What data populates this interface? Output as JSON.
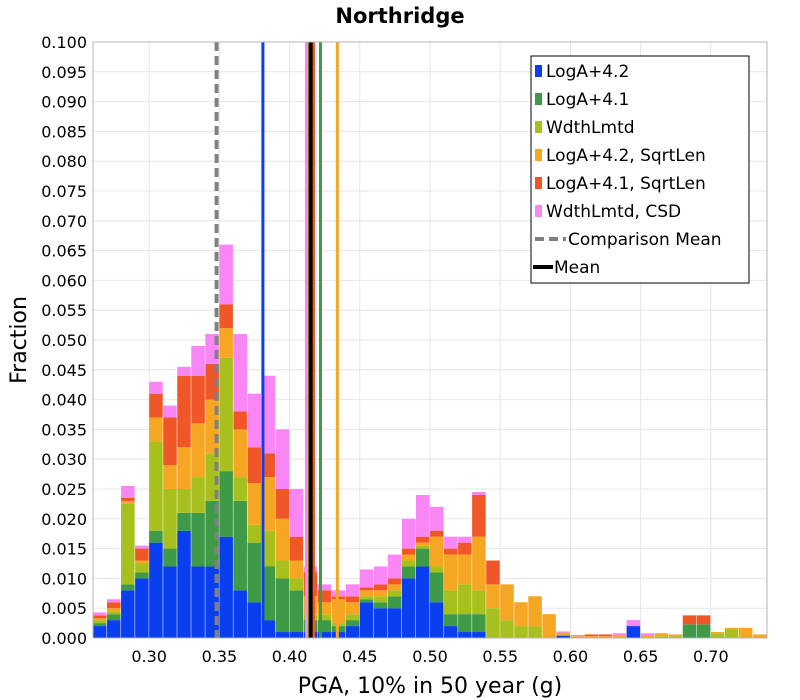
{
  "chart_data": {
    "type": "bar",
    "title": "Northridge",
    "xlabel": "PGA, 10% in 50 year (g)",
    "ylabel": "Fraction",
    "xlim": [
      0.26,
      0.74
    ],
    "ylim": [
      0,
      0.1
    ],
    "bin_width": 0.01,
    "x_ticks": [
      "0.30",
      "0.35",
      "0.40",
      "0.45",
      "0.50",
      "0.55",
      "0.60",
      "0.65",
      "0.70"
    ],
    "y_ticks": [
      "0.000",
      "0.005",
      "0.010",
      "0.015",
      "0.020",
      "0.025",
      "0.030",
      "0.035",
      "0.040",
      "0.045",
      "0.050",
      "0.055",
      "0.060",
      "0.065",
      "0.070",
      "0.075",
      "0.080",
      "0.085",
      "0.090",
      "0.095",
      "0.100"
    ],
    "grid": true,
    "legend_position": "top-right",
    "stacked": true,
    "series": [
      {
        "name": "LogA+4.2",
        "color": "#0a3ff0",
        "mean": 0.381,
        "x": [
          0.265,
          0.275,
          0.285,
          0.295,
          0.305,
          0.315,
          0.325,
          0.335,
          0.345,
          0.355,
          0.365,
          0.375,
          0.385,
          0.395,
          0.405,
          0.415,
          0.425,
          0.435,
          0.445,
          0.455,
          0.465,
          0.475,
          0.485,
          0.495,
          0.505,
          0.515,
          0.525,
          0.535,
          0.595,
          0.645
        ],
        "values": [
          0.002,
          0.003,
          0.008,
          0.01,
          0.016,
          0.012,
          0.018,
          0.012,
          0.012,
          0.017,
          0.008,
          0.006,
          0.003,
          0.001,
          0.001,
          0.001,
          0.001,
          0.001,
          0.002,
          0.006,
          0.005,
          0.005,
          0.01,
          0.012,
          0.006,
          0.002,
          0.001,
          0.001,
          0.0004,
          0.002
        ]
      },
      {
        "name": "LogA+4.1",
        "color": "#3f9a48",
        "mean": 0.422,
        "x": [
          0.265,
          0.275,
          0.285,
          0.295,
          0.305,
          0.315,
          0.325,
          0.335,
          0.345,
          0.355,
          0.365,
          0.375,
          0.385,
          0.395,
          0.405,
          0.415,
          0.425,
          0.435,
          0.445,
          0.455,
          0.465,
          0.475,
          0.485,
          0.495,
          0.505,
          0.515,
          0.525,
          0.535,
          0.685,
          0.695
        ],
        "values": [
          0.0005,
          0.001,
          0.001,
          0.001,
          0.002,
          0.003,
          0.003,
          0.009,
          0.011,
          0.011,
          0.015,
          0.01,
          0.009,
          0.009,
          0.007,
          0.002,
          0.002,
          0.001,
          0.001,
          0.0005,
          0.001,
          0.002,
          0.002,
          0.003,
          0.005,
          0.002,
          0.003,
          0.003,
          0.0023,
          0.0023
        ]
      },
      {
        "name": "WdthLmtd",
        "color": "#a8c01e",
        "mean": 0.413,
        "x": [
          0.265,
          0.275,
          0.285,
          0.295,
          0.305,
          0.315,
          0.325,
          0.335,
          0.345,
          0.355,
          0.365,
          0.375,
          0.385,
          0.395,
          0.405,
          0.415,
          0.425,
          0.435,
          0.445,
          0.455,
          0.465,
          0.475,
          0.485,
          0.495,
          0.505,
          0.515,
          0.525,
          0.535,
          0.545,
          0.555,
          0.565,
          0.575,
          0.665,
          0.675,
          0.705,
          0.715
        ],
        "values": [
          0.0005,
          0.0005,
          0.0135,
          0.0015,
          0.015,
          0.01,
          0.004,
          0.006,
          0.008,
          0.019,
          0.004,
          0.003,
          0.006,
          0.003,
          0.002,
          0.001,
          0.001,
          0.0005,
          0.001,
          0.0005,
          0.001,
          0.001,
          0.001,
          0.0005,
          0.001,
          0.004,
          0.005,
          0.004,
          0.005,
          0.003,
          0.002,
          0.002,
          0.0003,
          0.0003,
          0.0008,
          0.0015
        ]
      },
      {
        "name": "LogA+4.2, SqrtLen",
        "color": "#f5a623",
        "mean": 0.434,
        "x": [
          0.265,
          0.275,
          0.285,
          0.295,
          0.305,
          0.315,
          0.325,
          0.335,
          0.345,
          0.355,
          0.365,
          0.375,
          0.385,
          0.395,
          0.405,
          0.415,
          0.425,
          0.435,
          0.445,
          0.455,
          0.465,
          0.475,
          0.485,
          0.495,
          0.505,
          0.515,
          0.525,
          0.535,
          0.545,
          0.555,
          0.565,
          0.575,
          0.585,
          0.595,
          0.605,
          0.615,
          0.625,
          0.635,
          0.655,
          0.665,
          0.675,
          0.705,
          0.715,
          0.725,
          0.735
        ],
        "values": [
          0.0003,
          0.0005,
          0.0005,
          0.0005,
          0.004,
          0.004,
          0.007,
          0.009,
          0.009,
          0.005,
          0.008,
          0.007,
          0.009,
          0.007,
          0.003,
          0.003,
          0.002,
          0.004,
          0.002,
          0.001,
          0.001,
          0.001,
          0.001,
          0.0005,
          0.005,
          0.006,
          0.005,
          0.009,
          0.004,
          0.006,
          0.004,
          0.005,
          0.004,
          0.0005,
          0.0003,
          0.0003,
          0.0003,
          0.0005,
          0.0005,
          0.0005,
          0.0003,
          0.0002,
          0.0002,
          0.0017,
          0.0006
        ]
      },
      {
        "name": "LogA+4.1, SqrtLen",
        "color": "#ef5728",
        "mean": 0.417,
        "x": [
          0.265,
          0.275,
          0.285,
          0.295,
          0.305,
          0.315,
          0.325,
          0.335,
          0.345,
          0.355,
          0.365,
          0.375,
          0.385,
          0.395,
          0.405,
          0.415,
          0.425,
          0.435,
          0.445,
          0.455,
          0.465,
          0.475,
          0.485,
          0.495,
          0.505,
          0.515,
          0.525,
          0.535,
          0.545,
          0.615,
          0.625,
          0.685,
          0.695
        ],
        "values": [
          0.0005,
          0.001,
          0.0005,
          0.002,
          0.004,
          0.008,
          0.012,
          0.008,
          0.006,
          0.004,
          0.003,
          0.006,
          0.004,
          0.005,
          0.004,
          0.004,
          0.002,
          0.0005,
          0.001,
          0.0005,
          0.001,
          0.001,
          0.001,
          0.001,
          0.001,
          0.001,
          0.002,
          0.007,
          0.004,
          0.0003,
          0.0003,
          0.0015,
          0.0015
        ]
      },
      {
        "name": "WdthLmtd, CSD",
        "color": "#f986f5",
        "mean": 0.412,
        "x": [
          0.265,
          0.275,
          0.285,
          0.295,
          0.305,
          0.315,
          0.325,
          0.335,
          0.345,
          0.355,
          0.365,
          0.375,
          0.385,
          0.395,
          0.405,
          0.415,
          0.425,
          0.435,
          0.445,
          0.455,
          0.465,
          0.475,
          0.485,
          0.495,
          0.505,
          0.515,
          0.525,
          0.535,
          0.595,
          0.605,
          0.635,
          0.645,
          0.655
        ],
        "values": [
          0.0005,
          0.0005,
          0.002,
          0.0005,
          0.002,
          0.002,
          0.0015,
          0.005,
          0.005,
          0.01,
          0.013,
          0.009,
          0.013,
          0.01,
          0.008,
          0.001,
          0.001,
          0.001,
          0.002,
          0.003,
          0.003,
          0.004,
          0.005,
          0.007,
          0.004,
          0.002,
          0.001,
          0.0005,
          0.0002,
          0.0002,
          0.0003,
          0.001,
          0.0003
        ]
      }
    ],
    "comparison_mean": {
      "name": "Comparison Mean",
      "value": 0.348,
      "color": "#808080"
    },
    "overall_mean": {
      "name": "Mean",
      "value": 0.415,
      "color": "#000000"
    }
  }
}
